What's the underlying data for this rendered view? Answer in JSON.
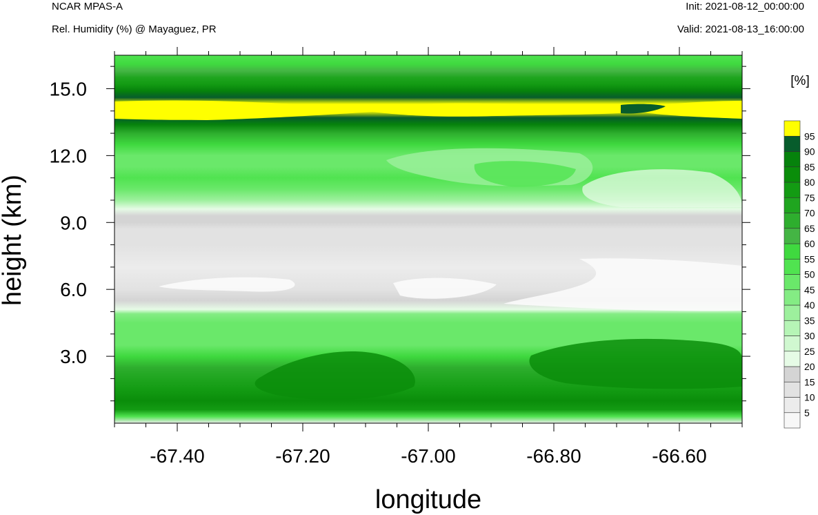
{
  "header": {
    "model": "NCAR MPAS-A",
    "subtitle": "Rel. Humidity (%) @ Mayaguez, PR",
    "init": "Init: 2021-08-12_00:00:00",
    "valid": "Valid: 2021-08-13_16:00:00"
  },
  "chart_data": {
    "type": "heatmap",
    "title": "Rel. Humidity (%) @ Mayaguez, PR",
    "xlabel": "longitude",
    "ylabel": "height (km)",
    "xlim": [
      -67.5,
      -66.5
    ],
    "ylim": [
      0,
      16.5
    ],
    "x_ticks": [
      -67.4,
      -67.2,
      -67.0,
      -66.8,
      -66.6
    ],
    "x_tick_labels": [
      "-67.40",
      "-67.20",
      "-67.00",
      "-66.80",
      "-66.60"
    ],
    "y_ticks": [
      3,
      6,
      9,
      12,
      15
    ],
    "y_tick_labels": [
      "3.0",
      "6.0",
      "9.0",
      "12.0",
      "15.0"
    ],
    "colorbar": {
      "unit_label": "[%]",
      "levels": [
        5,
        10,
        15,
        20,
        25,
        30,
        35,
        40,
        45,
        50,
        55,
        60,
        65,
        70,
        75,
        80,
        85,
        90,
        95
      ],
      "level_labels": [
        "5",
        "10",
        "15",
        "20",
        "25",
        "30",
        "35",
        "40",
        "45",
        "50",
        "55",
        "60",
        "65",
        "70",
        "75",
        "80",
        "85",
        "90",
        "95"
      ],
      "colors": [
        "#f7f7f7",
        "#ececec",
        "#e2e2e2",
        "#d4d4d4",
        "#e6fbe6",
        "#d0f8d0",
        "#b6f5b6",
        "#9df09d",
        "#84ec84",
        "#6ae86a",
        "#50e350",
        "#3fd93f",
        "#44b544",
        "#2eae2e",
        "#1fa51f",
        "#139b13",
        "#0a8d0a",
        "#06820c",
        "#075c2c",
        "#ffff00"
      ]
    },
    "height_profile": {
      "heights_km": [
        0.0,
        0.3,
        0.6,
        1.0,
        1.5,
        2.0,
        2.5,
        3.0,
        3.5,
        4.0,
        4.5,
        4.9,
        5.1,
        5.5,
        6.0,
        7.0,
        8.0,
        8.7,
        9.0,
        9.3,
        9.6,
        10.0,
        10.5,
        11.0,
        11.5,
        12.0,
        12.5,
        13.0,
        13.4,
        13.7,
        14.0,
        14.3,
        14.6,
        14.9,
        15.2,
        15.5,
        15.8,
        16.1,
        16.5
      ],
      "rh_percent": [
        5,
        50,
        78,
        80,
        75,
        72,
        65,
        55,
        48,
        45,
        45,
        40,
        20,
        17,
        12,
        8,
        10,
        13,
        15,
        18,
        22,
        35,
        45,
        52,
        46,
        45,
        55,
        68,
        85,
        92,
        97,
        97,
        92,
        85,
        78,
        70,
        62,
        55,
        50
      ]
    }
  }
}
